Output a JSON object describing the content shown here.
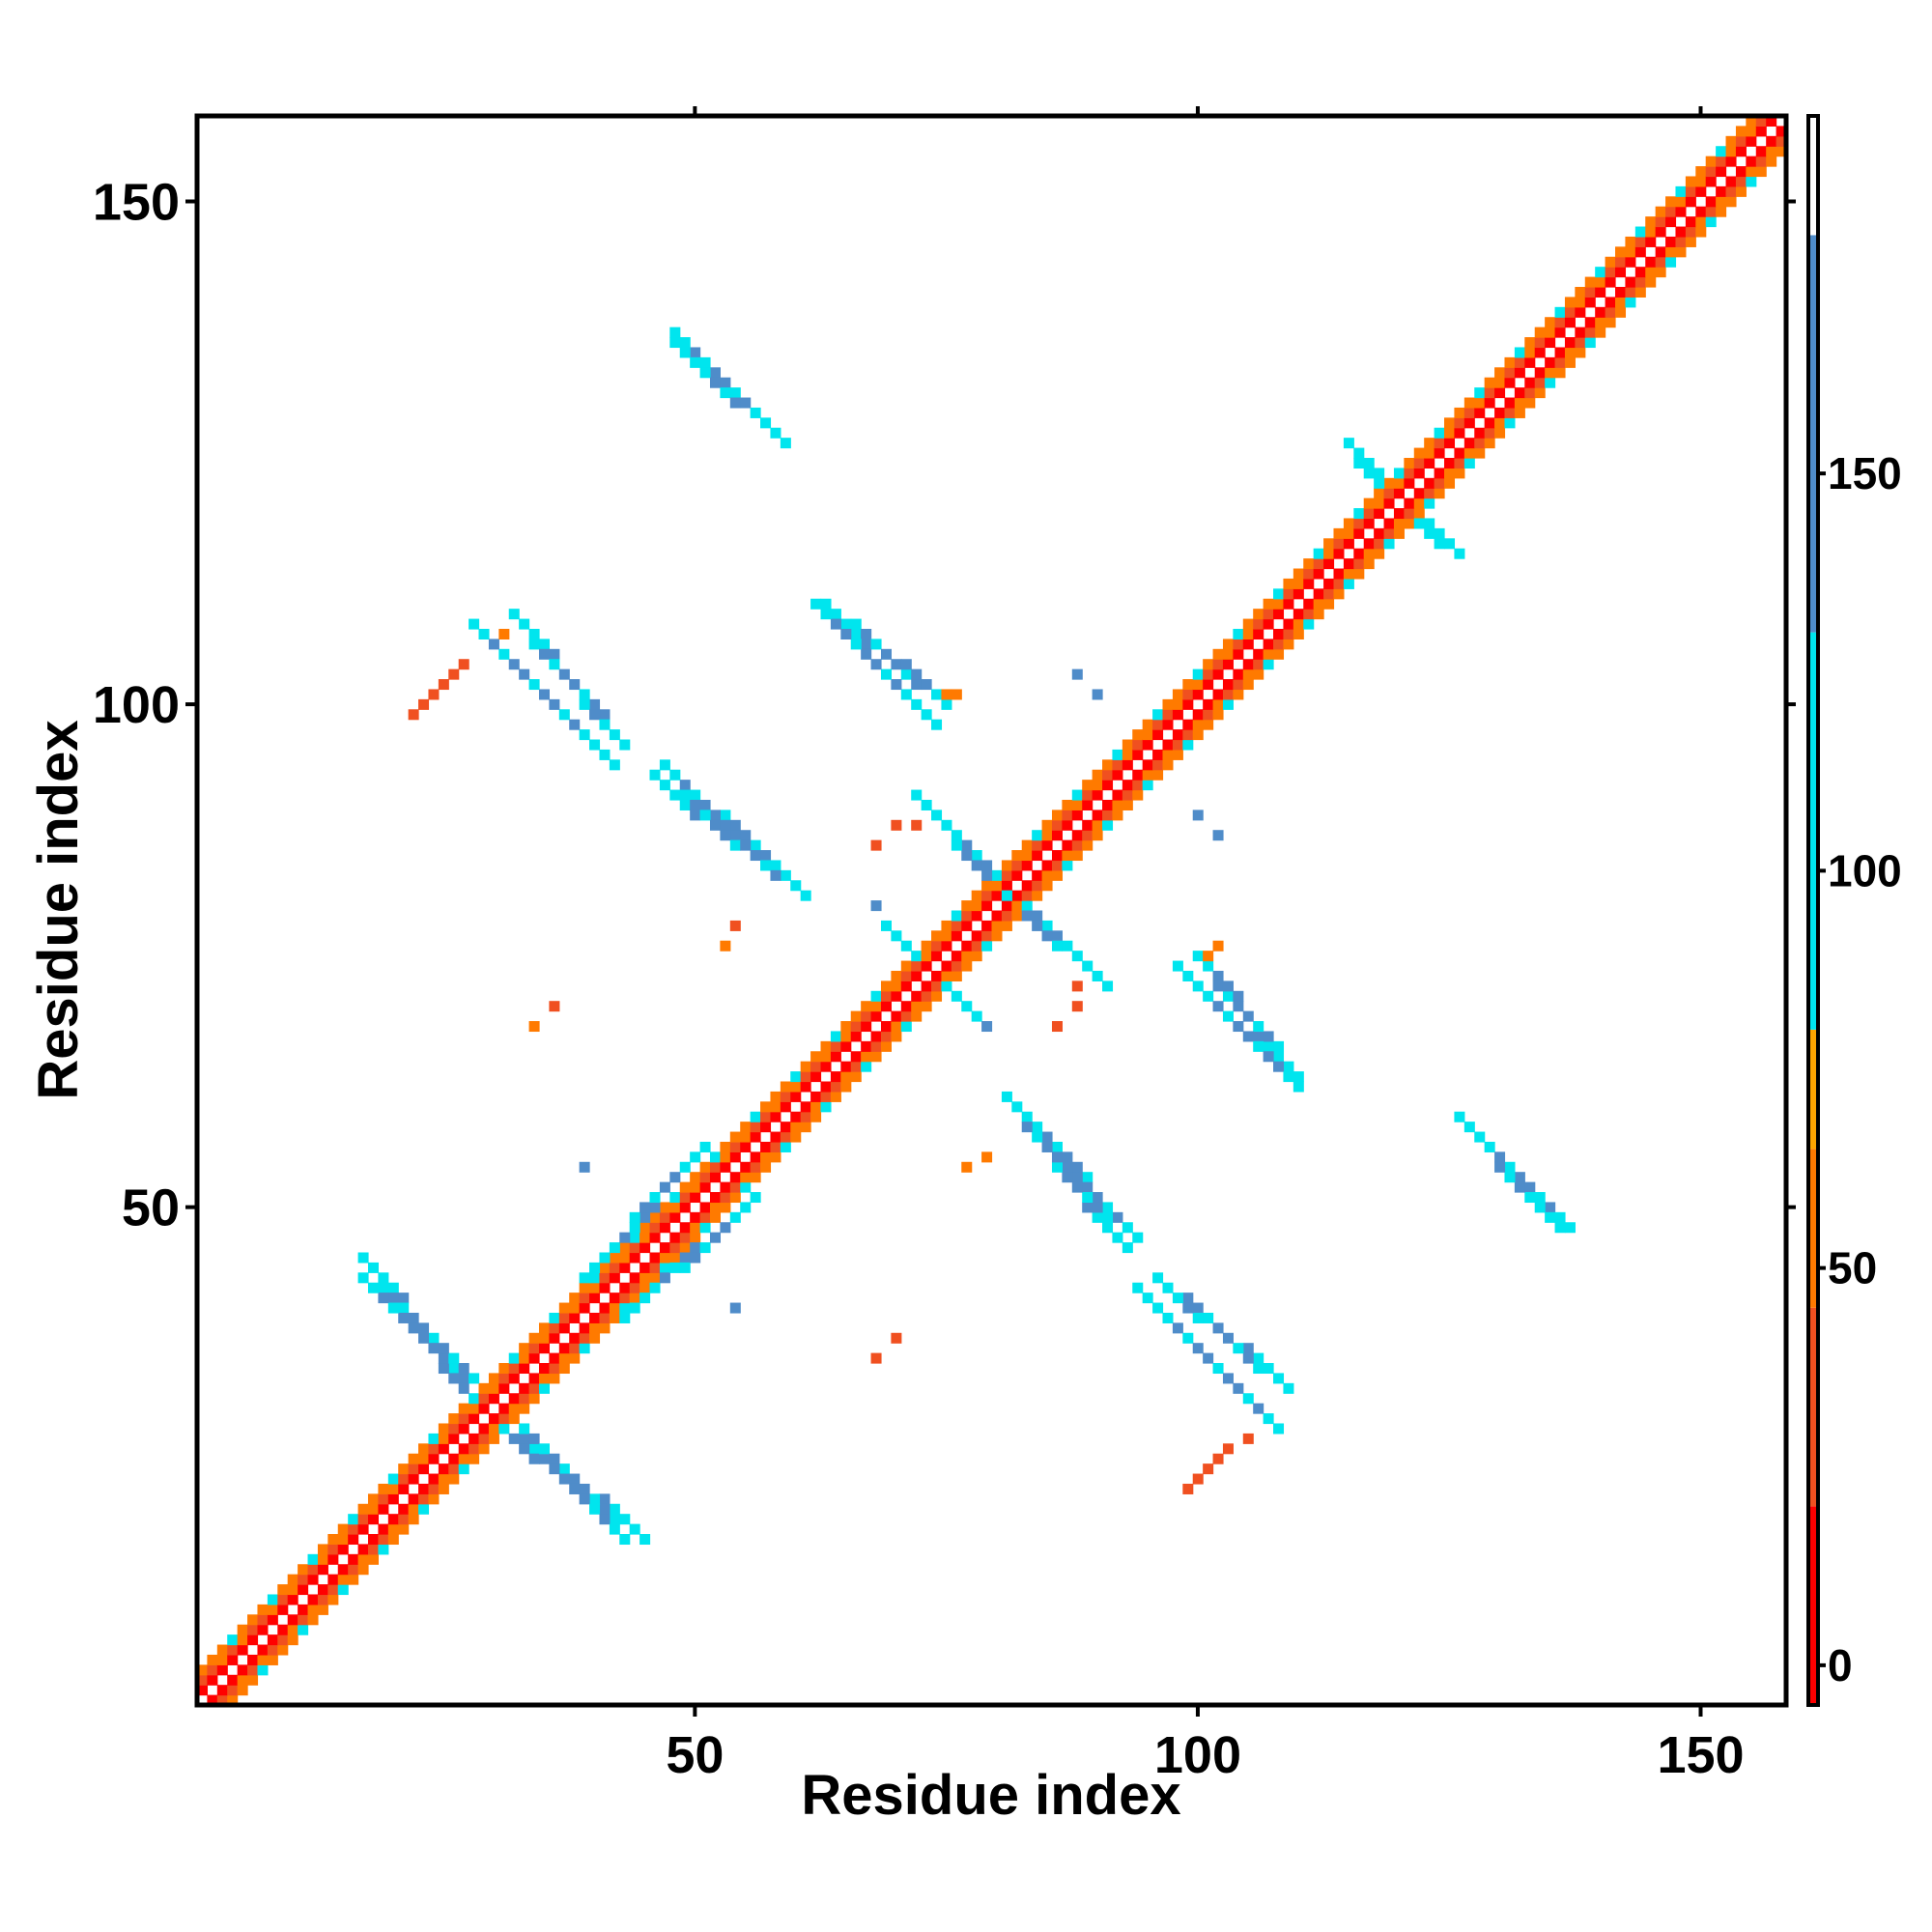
{
  "chart_data": {
    "type": "heatmap",
    "title": "",
    "xlabel": "Residue index",
    "ylabel": "Residue index",
    "xlim": [
      1,
      158
    ],
    "ylim": [
      1,
      158
    ],
    "x_ticks": [
      50,
      100,
      150
    ],
    "y_ticks": [
      50,
      100,
      150
    ],
    "grid": false,
    "legend": "colorbar-right",
    "colorbar": {
      "min": -5,
      "max": 195,
      "ticks": [
        0,
        50,
        100,
        150
      ],
      "bands": [
        {
          "from": -5,
          "to": 20,
          "color": "#ff0000"
        },
        {
          "from": 20,
          "to": 45,
          "color": "#f05020"
        },
        {
          "from": 45,
          "to": 65,
          "color": "#ff7a00"
        },
        {
          "from": 65,
          "to": 80,
          "color": "#ffa500"
        },
        {
          "from": 80,
          "to": 130,
          "color": "#00e5ee"
        },
        {
          "from": 130,
          "to": 180,
          "color": "#4f8cc9"
        },
        {
          "from": 180,
          "to": 195,
          "color": "#ffffff"
        }
      ]
    },
    "colors": {
      "red": "#ff0000",
      "red_orange": "#f05020",
      "orange": "#ff7a00",
      "light_orange": "#ffa500",
      "cyan": "#00e5ee",
      "steel_blue": "#4f8cc9"
    },
    "diagonal": {
      "from": 1,
      "to": 158
    },
    "strands": [
      {
        "x": [
          18,
          28
        ],
        "y": [
          44,
          31
        ]
      },
      {
        "x": [
          31,
          42
        ],
        "y": [
          30,
          18
        ]
      },
      {
        "x": [
          40,
          50
        ],
        "y": [
          44,
          55
        ]
      },
      {
        "x": [
          82,
          93
        ],
        "y": [
          60,
          48
        ]
      },
      {
        "x": [
          95,
          107
        ],
        "y": [
          41,
          29
        ]
      },
      {
        "x": [
          127,
          136
        ],
        "y": [
          58,
          49
        ]
      },
      {
        "x": [
          33,
          42
        ],
        "y": [
          108,
          97
        ]
      },
      {
        "x": [
          47,
          60
        ],
        "y": [
          92,
          82
        ]
      },
      {
        "x": [
          64,
          74
        ],
        "y": [
          109,
          101
        ]
      },
      {
        "x": [
          74,
          81
        ],
        "y": [
          89,
          81
        ]
      },
      {
        "x": [
          82,
          90
        ],
        "y": [
          80,
          73
        ]
      },
      {
        "x": [
          70,
          77
        ],
        "y": [
          77,
          70
        ]
      },
      {
        "x": [
          99,
          109
        ],
        "y": [
          73,
          63
        ]
      },
      {
        "x": [
          49,
          58
        ],
        "y": [
          135,
          127
        ]
      },
      {
        "x": [
          122,
          125
        ],
        "y": [
          118,
          116
        ]
      }
    ],
    "scatter_points": [
      {
        "x": 22,
        "y": 99,
        "v": 40
      },
      {
        "x": 23,
        "y": 100,
        "v": 35
      },
      {
        "x": 24,
        "y": 101,
        "v": 40
      },
      {
        "x": 25,
        "y": 102,
        "v": 38
      },
      {
        "x": 26,
        "y": 103,
        "v": 42
      },
      {
        "x": 27,
        "y": 104,
        "v": 40
      },
      {
        "x": 31,
        "y": 107,
        "v": 50
      },
      {
        "x": 75,
        "y": 101,
        "v": 48
      },
      {
        "x": 76,
        "y": 101,
        "v": 52
      },
      {
        "x": 54,
        "y": 78,
        "v": 30
      },
      {
        "x": 53,
        "y": 76,
        "v": 50
      },
      {
        "x": 34,
        "y": 68,
        "v": 45
      },
      {
        "x": 36,
        "y": 70,
        "v": 30
      },
      {
        "x": 39,
        "y": 54,
        "v": 160
      },
      {
        "x": 54,
        "y": 40,
        "v": 160
      },
      {
        "x": 68,
        "y": 35,
        "v": 40
      },
      {
        "x": 70,
        "y": 37,
        "v": 30
      },
      {
        "x": 68,
        "y": 86,
        "v": 25
      },
      {
        "x": 70,
        "y": 88,
        "v": 30
      },
      {
        "x": 72,
        "y": 88,
        "v": 28
      },
      {
        "x": 68,
        "y": 80,
        "v": 160
      },
      {
        "x": 79,
        "y": 68,
        "v": 160
      },
      {
        "x": 86,
        "y": 68,
        "v": 35
      },
      {
        "x": 88,
        "y": 70,
        "v": 30
      },
      {
        "x": 88,
        "y": 72,
        "v": 25
      },
      {
        "x": 77,
        "y": 54,
        "v": 50
      },
      {
        "x": 79,
        "y": 55,
        "v": 45
      },
      {
        "x": 88,
        "y": 103,
        "v": 160
      },
      {
        "x": 90,
        "y": 101,
        "v": 160
      },
      {
        "x": 100,
        "y": 89,
        "v": 160
      },
      {
        "x": 102,
        "y": 87,
        "v": 160
      },
      {
        "x": 101,
        "y": 75,
        "v": 50
      },
      {
        "x": 102,
        "y": 76,
        "v": 55
      },
      {
        "x": 99,
        "y": 22,
        "v": 40
      },
      {
        "x": 100,
        "y": 23,
        "v": 35
      },
      {
        "x": 101,
        "y": 24,
        "v": 40
      },
      {
        "x": 102,
        "y": 25,
        "v": 38
      },
      {
        "x": 103,
        "y": 26,
        "v": 42
      },
      {
        "x": 105,
        "y": 27,
        "v": 40
      }
    ]
  }
}
